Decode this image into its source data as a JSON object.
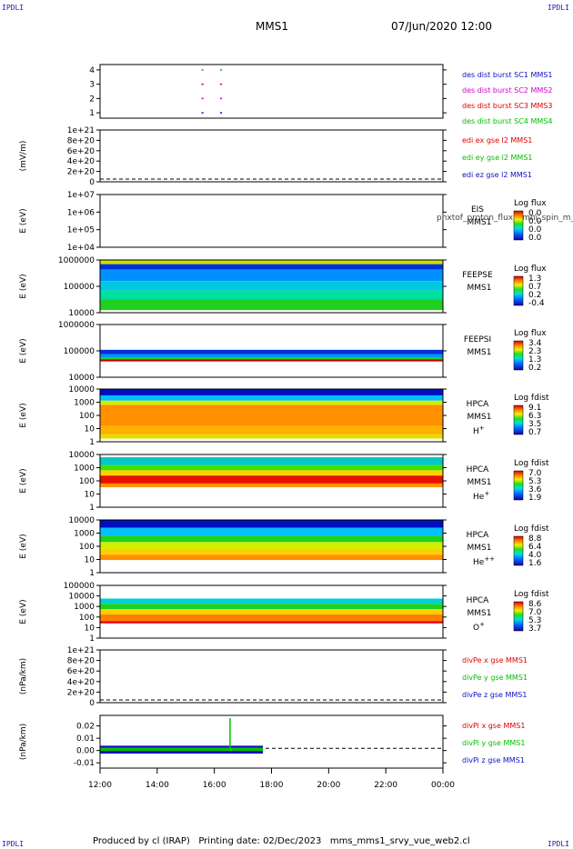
{
  "corner_marks": {
    "tl": "IPDLI",
    "tr": "IPDLI",
    "bl": "IPDLI",
    "br": "IPDLI"
  },
  "header": {
    "spacecraft": "MMS1",
    "datetime": "07/Jun/2020 12:00"
  },
  "footer": {
    "text": "Produced by cl (IRAP)   Printing date: 02/Dec/2023   mms_mms1_srvy_vue_web2.cl"
  },
  "colors": {
    "blue": "#1010c0",
    "magenta": "#d000d0",
    "red": "#e00000",
    "green": "#00c000",
    "dash": "#000000"
  },
  "chart_data": {
    "type": "multi-panel time series",
    "time_axis": {
      "ticks": [
        "12:00",
        "14:00",
        "16:00",
        "18:00",
        "20:00",
        "22:00",
        "00:00"
      ],
      "range_hours": [
        12,
        24
      ]
    },
    "panels": [
      {
        "id": "burst",
        "type": "line",
        "ylabel": "",
        "yticks": [
          "1",
          "2",
          "3",
          "4"
        ],
        "series": [
          {
            "name": "des dist burst SC1 MMS1",
            "color": "#1010c0",
            "y": 1,
            "segments": [
              [
                15.55,
                15.62
              ],
              [
                16.2,
                16.27
              ]
            ]
          },
          {
            "name": "des dist burst SC2 MMS2",
            "color": "#d000d0",
            "y": 2,
            "segments": [
              [
                15.55,
                15.62
              ],
              [
                16.2,
                16.27
              ]
            ]
          },
          {
            "name": "des dist burst SC3 MMS3",
            "color": "#e00000",
            "y": 3,
            "segments": [
              [
                15.55,
                15.62
              ],
              [
                16.2,
                16.27
              ]
            ]
          },
          {
            "name": "des dist burst SC4 MMS4",
            "color": "#00c000",
            "y": 4,
            "segments": [
              [
                15.55,
                15.62
              ],
              [
                16.2,
                16.27
              ]
            ]
          }
        ]
      },
      {
        "id": "edi",
        "type": "line",
        "ylabel": "(mV/m)",
        "yticks": [
          "0",
          "2e+20",
          "4e+20",
          "6e+20",
          "8e+20",
          "1e+21"
        ],
        "series": [
          {
            "name": "edi ex gse l2 MMS1",
            "color": "#e00000"
          },
          {
            "name": "edi ey gse l2 MMS1",
            "color": "#00c000"
          },
          {
            "name": "edi ez gse l2 MMS1",
            "color": "#1010c0"
          }
        ]
      },
      {
        "id": "eis",
        "type": "heatmap",
        "ylabel": "E (eV)",
        "yticks": [
          "1e+04",
          "1e+05",
          "1e+06",
          "1e+07"
        ],
        "labels": [
          "EIS",
          "MMS1"
        ],
        "overlay_text": "phxtof_proton_flux_omni_spin_m_arrxw",
        "colorbar": {
          "title": "Log flux",
          "ticks": [
            "0.0",
            "0.0",
            "0.0",
            "0.0"
          ]
        }
      },
      {
        "id": "feepse",
        "type": "heatmap",
        "ylabel": "E (eV)",
        "yticks": [
          "10000",
          "100000",
          "1000000"
        ],
        "labels": [
          "FEEPSE",
          "MMS1"
        ],
        "colorbar": {
          "title": "Log flux",
          "ticks": [
            "1.3",
            "0.7",
            "0.2",
            "-0.4"
          ]
        }
      },
      {
        "id": "feepsi",
        "type": "heatmap",
        "ylabel": "E (eV)",
        "yticks": [
          "10000",
          "100000",
          "1000000"
        ],
        "labels": [
          "FEEPSI",
          "MMS1"
        ],
        "colorbar": {
          "title": "Log flux",
          "ticks": [
            "3.4",
            "2.3",
            "1.3",
            "0.2"
          ]
        }
      },
      {
        "id": "hpca_h",
        "type": "heatmap",
        "ylabel": "E (eV)",
        "yticks": [
          "1",
          "10",
          "100",
          "1000",
          "10000"
        ],
        "labels": [
          "HPCA",
          "MMS1"
        ],
        "species": "H",
        "species_sup": "+",
        "colorbar": {
          "title": "Log fdist",
          "ticks": [
            "9.1",
            "6.3",
            "3.5",
            "0.7"
          ]
        }
      },
      {
        "id": "hpca_he",
        "type": "heatmap",
        "ylabel": "E (eV)",
        "yticks": [
          "1",
          "10",
          "100",
          "1000",
          "10000"
        ],
        "labels": [
          "HPCA",
          "MMS1"
        ],
        "species": "He",
        "species_sup": "+",
        "colorbar": {
          "title": "Log fdist",
          "ticks": [
            "7.0",
            "5.3",
            "3.6",
            "1.9"
          ]
        }
      },
      {
        "id": "hpca_hepp",
        "type": "heatmap",
        "ylabel": "E (eV)",
        "yticks": [
          "1",
          "10",
          "100",
          "1000",
          "10000"
        ],
        "labels": [
          "HPCA",
          "MMS1"
        ],
        "species": "He",
        "species_sup": "++",
        "colorbar": {
          "title": "Log fdist",
          "ticks": [
            "8.8",
            "6.4",
            "4.0",
            "1.6"
          ]
        }
      },
      {
        "id": "hpca_o",
        "type": "heatmap",
        "ylabel": "E (eV)",
        "yticks": [
          "1",
          "10",
          "100",
          "1000",
          "10000",
          "100000"
        ],
        "labels": [
          "HPCA",
          "MMS1"
        ],
        "species": "O",
        "species_sup": "+",
        "colorbar": {
          "title": "Log fdist",
          "ticks": [
            "8.6",
            "7.0",
            "5.3",
            "3.7"
          ]
        }
      },
      {
        "id": "divpe",
        "type": "line",
        "ylabel": "(nPa/km)",
        "yticks": [
          "0",
          "2e+20",
          "4e+20",
          "6e+20",
          "8e+20",
          "1e+21"
        ],
        "series": [
          {
            "name": "divPe x gse MMS1",
            "color": "#e00000"
          },
          {
            "name": "divPe y gse MMS1",
            "color": "#00c000"
          },
          {
            "name": "divPe z gse MMS1",
            "color": "#1010c0"
          }
        ]
      },
      {
        "id": "divpi",
        "type": "line",
        "ylabel": "(nPa/km)",
        "yticks": [
          "-0.01",
          "0.00",
          "0.01",
          "0.02"
        ],
        "ylim": [
          -0.015,
          0.025
        ],
        "data_span_hours": [
          12,
          17.7
        ],
        "spike": {
          "x": 16.55,
          "y": 0.023
        },
        "series": [
          {
            "name": "divPi x gse MMS1",
            "color": "#e00000"
          },
          {
            "name": "divPi y gse MMS1",
            "color": "#00c000"
          },
          {
            "name": "divPi z gse MMS1",
            "color": "#1010c0"
          }
        ]
      }
    ]
  }
}
